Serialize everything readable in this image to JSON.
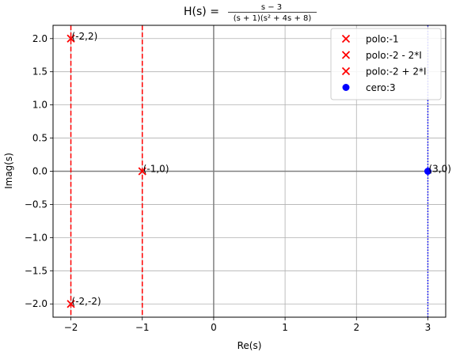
{
  "chart_data": {
    "type": "scatter",
    "title": {
      "prefix": "H(s) = ",
      "numerator": "s − 3",
      "denominator": "(s + 1)(s² + 4s + 8)"
    },
    "xlabel": "Re(s)",
    "ylabel": "Imag(s)",
    "xlim": [
      -2.25,
      3.25
    ],
    "ylim": [
      -2.2,
      2.2
    ],
    "xticks": [
      -2,
      -1,
      0,
      1,
      2,
      3
    ],
    "yticks": [
      -2.0,
      -1.5,
      -1.0,
      -0.5,
      0.0,
      0.5,
      1.0,
      1.5,
      2.0
    ],
    "grid": true,
    "legend_position": "top-right",
    "series": [
      {
        "name": "polo:-1",
        "marker": "x",
        "color": "#ff0000",
        "points": [
          {
            "x": -1,
            "y": 0
          }
        ]
      },
      {
        "name": "polo:-2 - 2*I",
        "marker": "x",
        "color": "#ff0000",
        "points": [
          {
            "x": -2,
            "y": -2
          }
        ]
      },
      {
        "name": "polo:-2 + 2*I",
        "marker": "x",
        "color": "#ff0000",
        "points": [
          {
            "x": -2,
            "y": 2
          }
        ]
      },
      {
        "name": "cero:3",
        "marker": "o",
        "color": "#0000ff",
        "points": [
          {
            "x": 3,
            "y": 0
          }
        ]
      }
    ],
    "vertical_lines": [
      {
        "x": -2,
        "style": "dashed",
        "color": "#ff0000"
      },
      {
        "x": -1,
        "style": "dashed",
        "color": "#ff0000"
      },
      {
        "x": 3,
        "style": "dotted",
        "color": "#0000ff"
      }
    ],
    "annotations": [
      {
        "text": "(-1,0)",
        "x": -1,
        "y": 0
      },
      {
        "text": "(-2,-2)",
        "x": -2,
        "y": -2
      },
      {
        "text": "(-2,2)",
        "x": -2,
        "y": 2
      },
      {
        "text": "(3,0)",
        "x": 3,
        "y": 0
      }
    ]
  }
}
